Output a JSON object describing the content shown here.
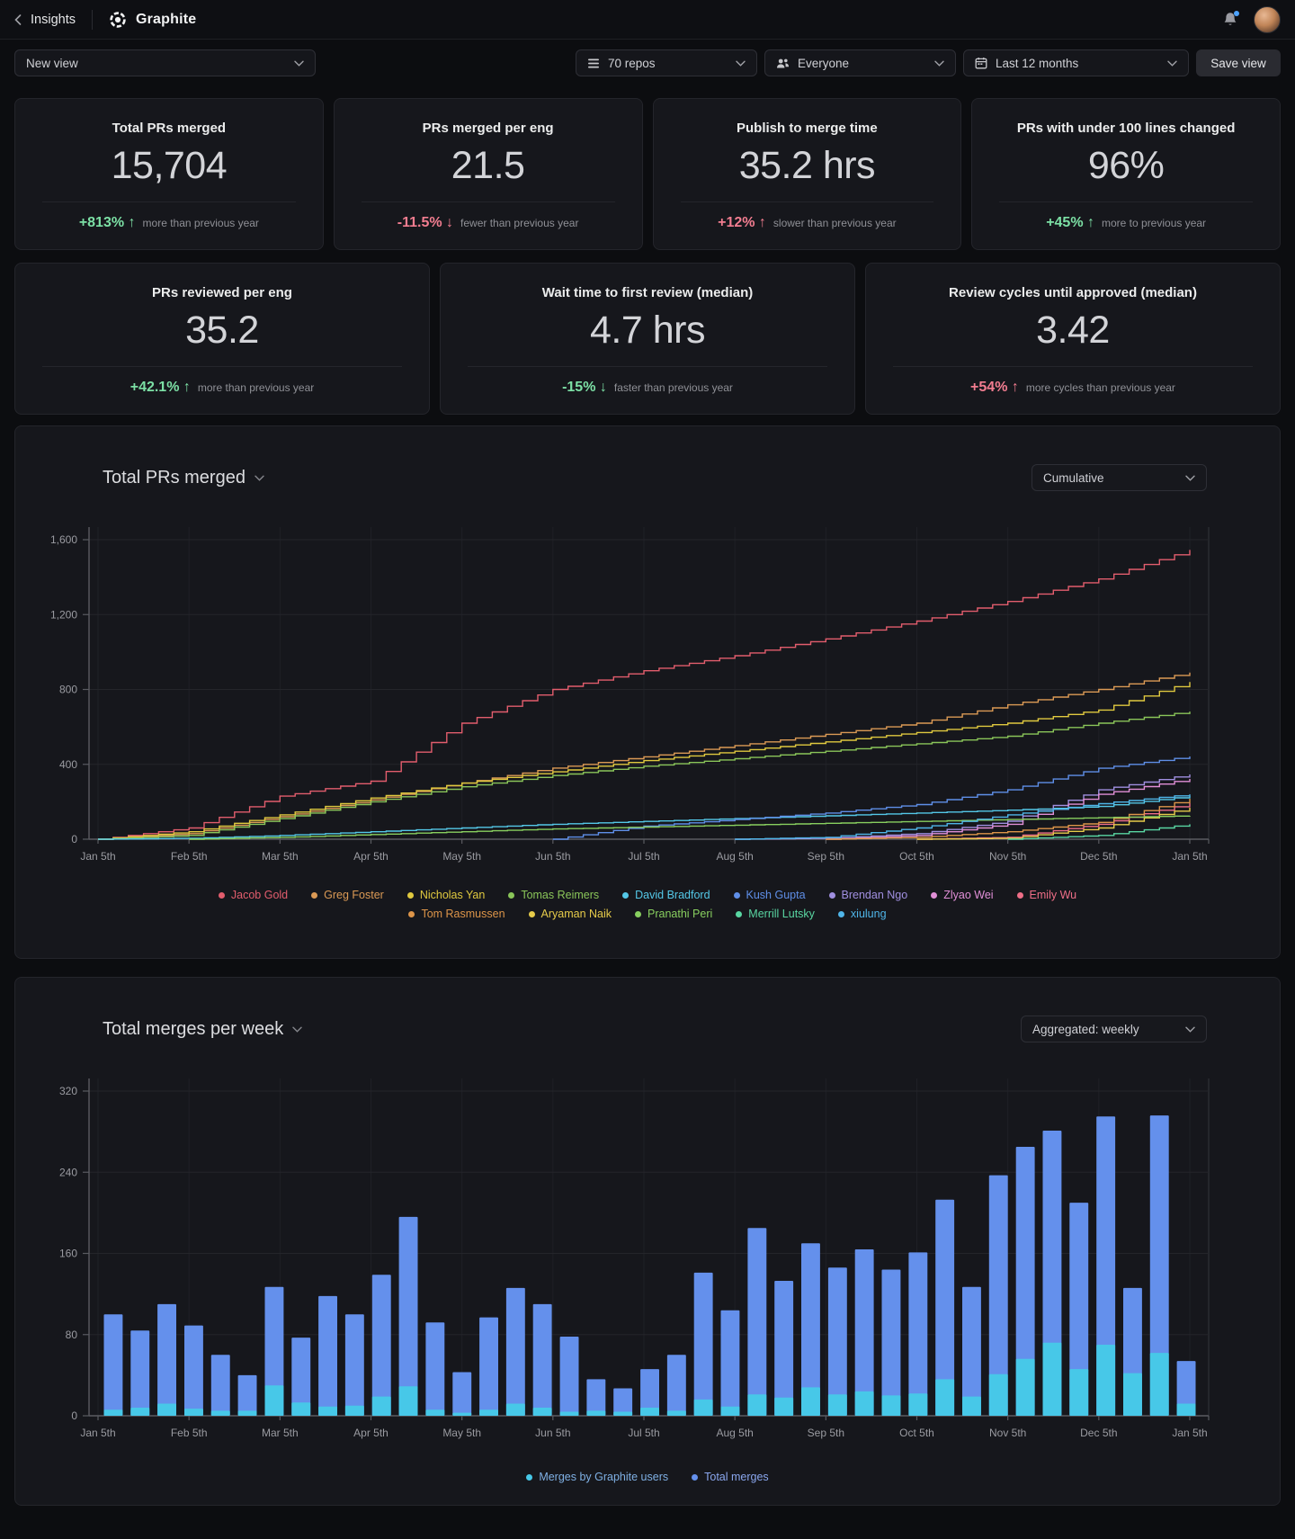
{
  "header": {
    "back_label": "Insights",
    "app_name": "Graphite"
  },
  "filters": {
    "view_select_label": "New view",
    "repos_select_label": "70 repos",
    "people_select_label": "Everyone",
    "range_select_label": "Last 12 months",
    "save_button_label": "Save view"
  },
  "colors": {
    "delta_green": "#7ce0a5",
    "delta_red": "#f27d90",
    "bar_total": "#6490ec",
    "bar_graphite": "#47c8e8",
    "axis": "#5a5b61",
    "grid_h": "#24252a",
    "grid_v": "#1f2026",
    "tick_text": "#9a9ba1"
  },
  "metrics": [
    {
      "title": "Total PRs merged",
      "value": "15,704",
      "delta": "+813%",
      "arrow": "↑",
      "delta_color": "green",
      "note": "more than previous year"
    },
    {
      "title": "PRs merged per eng",
      "value": "21.5",
      "delta": "-11.5%",
      "arrow": "↓",
      "delta_color": "red",
      "note": "fewer than previous year"
    },
    {
      "title": "Publish to merge time",
      "value": "35.2 hrs",
      "delta": "+12%",
      "arrow": "↑",
      "delta_color": "red",
      "note": "slower than previous year"
    },
    {
      "title": "PRs with under 100 lines changed",
      "value": "96%",
      "delta": "+45%",
      "arrow": "↑",
      "delta_color": "green",
      "note": "more to previous year"
    },
    {
      "title": "PRs reviewed per eng",
      "value": "35.2",
      "delta": "+42.1%",
      "arrow": "↑",
      "delta_color": "green",
      "note": "more than previous year"
    },
    {
      "title": "Wait time to first review (median)",
      "value": "4.7 hrs",
      "delta": "-15%",
      "arrow": "↓",
      "delta_color": "green",
      "note": "faster than previous year"
    },
    {
      "title": "Review cycles until approved (median)",
      "value": "3.42",
      "delta": "+54%",
      "arrow": "↑",
      "delta_color": "red",
      "note": "more cycles than previous year"
    }
  ],
  "chart_data": [
    {
      "type": "line",
      "title": "Total PRs merged",
      "mode_dropdown": "Cumulative",
      "ylim": [
        0,
        1600
      ],
      "y_ticks": [
        {
          "v": 1600,
          "label": "1,600"
        },
        {
          "v": 1200,
          "label": "1,200"
        },
        {
          "v": 800,
          "label": "800"
        },
        {
          "v": 400,
          "label": "400"
        },
        {
          "v": 0,
          "label": "0"
        }
      ],
      "x": [
        "Jan 5th",
        "Feb 5th",
        "Mar 5th",
        "Apr 5th",
        "May 5th",
        "Jun 5th",
        "Jul 5th",
        "Aug 5th",
        "Sep 5th",
        "Oct 5th",
        "Nov 5th",
        "Dec 5th",
        "Jan 5th"
      ],
      "legend_split": 9,
      "series": [
        {
          "name": "Jacob Gold",
          "color": "#e25d6d",
          "values": [
            0,
            60,
            230,
            310,
            620,
            800,
            900,
            980,
            1070,
            1165,
            1270,
            1390,
            1545
          ]
        },
        {
          "name": "Greg Foster",
          "color": "#db9a55",
          "values": [
            0,
            30,
            120,
            210,
            300,
            380,
            440,
            500,
            560,
            620,
            718,
            800,
            890
          ]
        },
        {
          "name": "Nicholas Yan",
          "color": "#e0c93f",
          "values": [
            0,
            40,
            130,
            220,
            300,
            360,
            420,
            470,
            520,
            570,
            620,
            690,
            840
          ]
        },
        {
          "name": "Tomas Reimers",
          "color": "#8ac559",
          "values": [
            0,
            20,
            110,
            200,
            280,
            340,
            390,
            430,
            470,
            510,
            550,
            620,
            682
          ]
        },
        {
          "name": "David Bradford",
          "color": "#54c8e8",
          "values": [
            0,
            5,
            20,
            40,
            60,
            80,
            95,
            110,
            125,
            140,
            155,
            175,
            230
          ]
        },
        {
          "name": "Kush Gupta",
          "color": "#5f8fe8",
          "values": [
            0,
            0,
            0,
            0,
            0,
            0,
            70,
            105,
            140,
            185,
            264,
            379,
            442
          ]
        },
        {
          "name": "Brendan Ngo",
          "color": "#a08fe0",
          "values": [
            0,
            0,
            0,
            0,
            0,
            0,
            0,
            0,
            5,
            30,
            96,
            264,
            346
          ]
        },
        {
          "name": "Zlyao Wei",
          "color": "#e18fd7",
          "values": [
            0,
            0,
            0,
            0,
            0,
            0,
            0,
            0,
            0,
            20,
            80,
            240,
            322
          ]
        },
        {
          "name": "Emily Wu",
          "color": "#ee6e87",
          "values": [
            0,
            0,
            0,
            0,
            0,
            0,
            0,
            0,
            0,
            0,
            10,
            80,
            192
          ]
        },
        {
          "name": "Tom Rasmussen",
          "color": "#dd9549",
          "values": [
            0,
            0,
            0,
            0,
            0,
            0,
            0,
            0,
            0,
            10,
            40,
            90,
            216
          ]
        },
        {
          "name": "Aryaman Naik",
          "color": "#e6cb4a",
          "values": [
            0,
            0,
            0,
            0,
            0,
            0,
            0,
            0,
            0,
            0,
            5,
            60,
            168
          ]
        },
        {
          "name": "Pranathi Peri",
          "color": "#88cf5f",
          "values": [
            0,
            0,
            10,
            25,
            40,
            55,
            65,
            75,
            85,
            95,
            105,
            115,
            125
          ]
        },
        {
          "name": "Merrill Lutsky",
          "color": "#59d6a2",
          "values": [
            0,
            0,
            0,
            0,
            0,
            0,
            0,
            0,
            0,
            0,
            0,
            20,
            80
          ]
        },
        {
          "name": "xiulung",
          "color": "#4fb5e8",
          "values": [
            0,
            0,
            0,
            0,
            0,
            0,
            0,
            0,
            10,
            60,
            130,
            190,
            240
          ]
        }
      ]
    },
    {
      "type": "bar",
      "title": "Total merges per week",
      "mode_dropdown": "Aggregated: weekly",
      "ylim": [
        0,
        320
      ],
      "y_ticks": [
        {
          "v": 320,
          "label": "320"
        },
        {
          "v": 240,
          "label": "240"
        },
        {
          "v": 160,
          "label": "160"
        },
        {
          "v": 80,
          "label": "80"
        },
        {
          "v": 0,
          "label": "0"
        }
      ],
      "x": [
        "Jan 5th",
        "Feb 5th",
        "Mar 5th",
        "Apr 5th",
        "May 5th",
        "Jun 5th",
        "Jul 5th",
        "Aug 5th",
        "Sep 5th",
        "Oct 5th",
        "Nov 5th",
        "Dec 5th",
        "Jan 5th"
      ],
      "series": [
        {
          "name": "Total merges",
          "color": "#6490ec",
          "text_color": "#8aa7ee",
          "values": [
            100,
            84,
            110,
            89,
            60,
            40,
            127,
            77,
            118,
            100,
            139,
            196,
            92,
            43,
            97,
            126,
            110,
            78,
            36,
            27,
            46,
            60,
            141,
            104,
            185,
            133,
            170,
            146,
            164,
            144,
            161,
            213,
            127,
            237,
            265,
            281,
            210,
            295,
            126,
            296,
            54
          ]
        },
        {
          "name": "Merges by Graphite users",
          "color": "#47c8e8",
          "text_color": "#7fb0e4",
          "values": [
            6,
            8,
            12,
            7,
            5,
            5,
            30,
            13,
            9,
            10,
            19,
            29,
            6,
            3,
            6,
            12,
            8,
            4,
            5,
            4,
            8,
            5,
            16,
            9,
            21,
            18,
            28,
            21,
            24,
            20,
            22,
            36,
            19,
            41,
            56,
            72,
            46,
            70,
            42,
            62,
            12
          ]
        }
      ],
      "legend_order": [
        "Merges by Graphite users",
        "Total merges"
      ]
    }
  ]
}
